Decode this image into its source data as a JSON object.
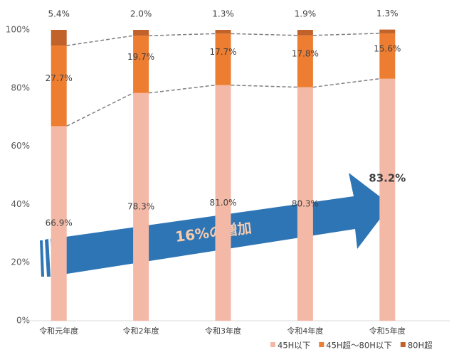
{
  "chart_data": {
    "type": "stacked_bar",
    "categories": [
      "令和元年度",
      "令和2年度",
      "令和3年度",
      "令和4年度",
      "令和5年度"
    ],
    "series": [
      {
        "name": "45H以下",
        "color": "#f4b9a6",
        "values": [
          66.9,
          78.3,
          81.0,
          80.3,
          83.2
        ],
        "value_labels": [
          "66.9%",
          "78.3%",
          "81.0%",
          "80.3%",
          "83.2%"
        ]
      },
      {
        "name": "45H超～80H以下",
        "color": "#ed7d31",
        "values": [
          27.7,
          19.7,
          17.7,
          17.8,
          15.6
        ],
        "value_labels": [
          "27.7%",
          "19.7%",
          "17.7%",
          "17.8%",
          "15.6%"
        ]
      },
      {
        "name": "80H超",
        "color": "#c0622a",
        "values": [
          5.4,
          2.0,
          1.3,
          1.9,
          1.3
        ],
        "value_labels": [
          "5.4%",
          "2.0%",
          "1.3%",
          "1.9%",
          "1.3%"
        ]
      }
    ],
    "ylim": [
      0,
      100
    ],
    "yticks": [
      {
        "value": 0,
        "label": "0%"
      },
      {
        "value": 20,
        "label": "20%"
      },
      {
        "value": 40,
        "label": "40%"
      },
      {
        "value": 60,
        "label": "60%"
      },
      {
        "value": 80,
        "label": "80%"
      },
      {
        "value": 100,
        "label": "100%"
      }
    ],
    "grid": false,
    "legend": "bottom-right",
    "emphasis": {
      "series": 0,
      "index": 4
    },
    "annotation": "16%の増加"
  }
}
